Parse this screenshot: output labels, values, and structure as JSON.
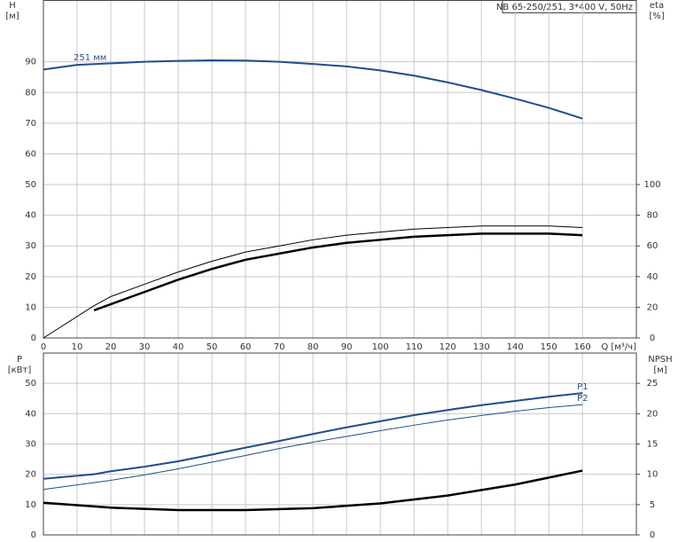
{
  "chart_data": [
    {
      "type": "line",
      "title": "NB 65-250/251, 3*400 V, 50Hz",
      "ylabel": "H",
      "yunit": "[м]",
      "y2label": "eta",
      "y2unit": "[%]",
      "xlabel": "Q [м³/ч]",
      "xlim": [
        0,
        176
      ],
      "xticks": [
        0,
        10,
        20,
        30,
        40,
        50,
        60,
        70,
        80,
        90,
        100,
        110,
        120,
        130,
        140,
        150,
        160
      ],
      "ylim": [
        0,
        110
      ],
      "yticks": [
        0,
        10,
        20,
        30,
        40,
        50,
        60,
        70,
        80,
        90
      ],
      "y2lim": [
        0,
        220
      ],
      "y2ticks": [
        0,
        20,
        40,
        60,
        80,
        100
      ],
      "grid": true,
      "series": [
        {
          "name": "251 мм",
          "color": "#1f4e8c",
          "linewidth": 2,
          "x": [
            0,
            10,
            20,
            30,
            40,
            50,
            60,
            70,
            80,
            90,
            100,
            110,
            120,
            130,
            140,
            150,
            160
          ],
          "values": [
            87.5,
            89,
            89.5,
            90,
            90.3,
            90.5,
            90.4,
            90,
            89.3,
            88.5,
            87.2,
            85.5,
            83.3,
            80.8,
            78,
            75,
            71.5
          ]
        },
        {
          "color": "#000000",
          "linewidth": 1,
          "axis": "y2",
          "x": [
            0,
            15,
            20,
            30,
            40,
            50,
            60,
            70,
            80,
            90,
            100,
            110,
            120,
            130,
            140,
            150,
            160
          ],
          "values": [
            0,
            21,
            27,
            35,
            43,
            50,
            56,
            60,
            64,
            67,
            69,
            71,
            72,
            73,
            73,
            73,
            72
          ]
        },
        {
          "color": "#000000",
          "linewidth": 2.5,
          "axis": "y2",
          "x": [
            15,
            20,
            30,
            40,
            50,
            60,
            70,
            80,
            90,
            100,
            110,
            120,
            130,
            140,
            150,
            160
          ],
          "values": [
            18,
            22,
            30,
            38,
            45,
            51,
            55,
            59,
            62,
            64,
            66,
            67,
            68,
            68,
            68,
            67
          ]
        }
      ]
    },
    {
      "type": "line",
      "ylabel": "P",
      "yunit": "[кВт]",
      "y2label": "NPSH",
      "y2unit": "[м]",
      "xlim": [
        0,
        176
      ],
      "ylim": [
        0,
        60
      ],
      "yticks": [
        0,
        10,
        20,
        30,
        40,
        50
      ],
      "y2lim": [
        0,
        30
      ],
      "y2ticks": [
        0,
        5,
        10,
        15,
        20,
        25
      ],
      "grid": true,
      "series": [
        {
          "name": "P1",
          "color": "#1f4e8c",
          "linewidth": 2,
          "x": [
            0,
            15,
            20,
            30,
            40,
            50,
            60,
            70,
            80,
            90,
            100,
            110,
            120,
            130,
            140,
            150,
            160
          ],
          "values": [
            18.5,
            20,
            21,
            22.5,
            24.3,
            26.5,
            28.8,
            31,
            33.3,
            35.5,
            37.5,
            39.5,
            41.2,
            42.8,
            44.2,
            45.6,
            46.8
          ]
        },
        {
          "name": "P2",
          "color": "#1f4e8c",
          "linewidth": 1,
          "x": [
            0,
            10,
            20,
            30,
            40,
            50,
            60,
            70,
            80,
            90,
            100,
            110,
            120,
            130,
            140,
            150,
            160
          ],
          "values": [
            15,
            16.5,
            18,
            19.8,
            21.8,
            24,
            26.2,
            28.5,
            30.6,
            32.5,
            34.4,
            36.2,
            37.9,
            39.4,
            40.8,
            42,
            43
          ]
        },
        {
          "color": "#000000",
          "linewidth": 2.5,
          "axis": "y2",
          "x": [
            0,
            20,
            40,
            50,
            60,
            80,
            100,
            120,
            140,
            160
          ],
          "values": [
            5.3,
            4.5,
            4.1,
            4.1,
            4.1,
            4.4,
            5.2,
            6.5,
            8.3,
            10.6
          ]
        }
      ]
    }
  ]
}
